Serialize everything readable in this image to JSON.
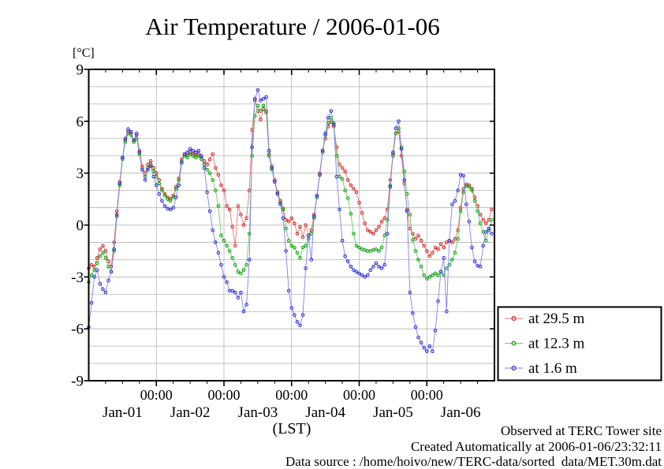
{
  "title": "Air Temperature / 2006-01-06",
  "y_axis": {
    "unit_label": "[°C]",
    "min": -9,
    "max": 9,
    "label_step": 3,
    "grid_step": 1,
    "tick_labels": [
      "9",
      "6",
      "3",
      "0",
      "-3",
      "-6",
      "-9"
    ]
  },
  "x_axis": {
    "label": "(LST)",
    "start_hour": 0,
    "end_hour": 144,
    "minor_tick_hours": 6,
    "major_tick_hours": 24,
    "midnight_label": "00:00",
    "day_labels": [
      "Jan-01",
      "Jan-02",
      "Jan-03",
      "Jan-04",
      "Jan-05",
      "Jan-06"
    ]
  },
  "footer": {
    "line1": "Observed at TERC Tower site",
    "line2": "Created Automatically at 2006-01-06/23:32:11",
    "line3": "Data source : /home/hoivo/new/TERC-data/sorted  data/MET.30m.dat"
  },
  "colors": {
    "background": "#ffffff",
    "frame": "#000000",
    "grid": "#b4b4b4"
  },
  "chart_data": {
    "type": "line",
    "title": "Air Temperature / 2006-01-06",
    "xlabel": "(LST)",
    "ylabel": "[°C]",
    "ylim": [
      -9,
      9
    ],
    "xlim_hours": [
      0,
      144
    ],
    "grid": "on",
    "legend_position": "outside-right-bottom",
    "x_unit": "hours since 2006-01-01 00:00 LST",
    "step_hours": 1,
    "series": [
      {
        "name": "at 29.5 m",
        "line_color": "#f07070",
        "marker_color": "#d62020",
        "values": [
          -2.5,
          -2.3,
          -2.4,
          -1.9,
          -1.4,
          -1.2,
          -1.5,
          -2.1,
          -2.4,
          -1.0,
          0.8,
          2.5,
          3.9,
          4.9,
          5.4,
          5.3,
          4.9,
          5.2,
          4.3,
          3.4,
          3.0,
          3.5,
          3.7,
          3.3,
          3.0,
          2.6,
          2.1,
          1.8,
          1.6,
          1.5,
          1.7,
          2.2,
          2.7,
          3.8,
          4.1,
          4.0,
          4.2,
          4.1,
          4.0,
          4.1,
          3.9,
          3.7,
          3.5,
          3.8,
          4.1,
          3.3,
          2.9,
          2.3,
          2.0,
          1.1,
          0.9,
          -0.1,
          -1.2,
          1.1,
          0.6,
          0.0,
          0.4,
          2.0,
          5.5,
          7.2,
          6.6,
          6.1,
          6.7,
          6.5,
          4.1,
          3.4,
          2.6,
          1.9,
          1.4,
          0.95,
          0.3,
          0.2,
          0.4,
          0.1,
          -0.5,
          -0.1,
          -0.7,
          0.0,
          -0.6,
          -0.3,
          0.6,
          1.7,
          3.0,
          4.3,
          5.0,
          5.7,
          5.95,
          5.7,
          4.5,
          3.5,
          3.3,
          3.1,
          2.6,
          2.3,
          2.1,
          1.9,
          1.3,
          0.7,
          0.1,
          -0.3,
          -0.4,
          -0.5,
          -0.3,
          -0.1,
          0.2,
          0.4,
          0.9,
          2.6,
          4.1,
          5.3,
          5.4,
          4.0,
          2.4,
          0.9,
          -0.2,
          -0.5,
          -0.8,
          -0.6,
          -0.9,
          -1.2,
          -1.5,
          -1.8,
          -1.6,
          -1.3,
          -1.4,
          -1.1,
          -1.3,
          -1.0,
          -0.9,
          -1.0,
          -0.8,
          -0.3,
          1.0,
          2.1,
          2.35,
          2.3,
          2.1,
          1.6,
          1.1,
          0.6,
          0.3,
          0.1,
          0.3,
          0.9
        ]
      },
      {
        "name": "at 12.3 m",
        "line_color": "#6cc86c",
        "marker_color": "#00a000",
        "values": [
          -3.3,
          -2.9,
          -2.6,
          -2.2,
          -1.8,
          -1.6,
          -1.9,
          -2.4,
          -2.7,
          -1.5,
          0.5,
          2.3,
          3.8,
          4.8,
          5.3,
          5.2,
          4.8,
          5.0,
          4.1,
          3.2,
          2.8,
          3.3,
          3.5,
          3.1,
          2.8,
          2.4,
          2.0,
          1.7,
          1.5,
          1.4,
          1.6,
          2.1,
          2.6,
          3.7,
          4.0,
          3.9,
          4.1,
          4.0,
          3.9,
          4.0,
          3.8,
          3.5,
          3.2,
          3.0,
          2.6,
          2.0,
          1.1,
          -0.6,
          -0.9,
          -1.2,
          -1.5,
          -1.9,
          -2.3,
          -2.7,
          -2.8,
          -2.6,
          -2.3,
          -0.5,
          4.0,
          6.3,
          6.9,
          6.6,
          6.9,
          6.6,
          4.0,
          3.2,
          2.5,
          1.8,
          1.3,
          0.9,
          -0.2,
          -0.9,
          -1.2,
          -1.3,
          -1.6,
          -1.9,
          -1.3,
          -1.2,
          -0.8,
          -0.5,
          0.4,
          1.6,
          2.9,
          4.2,
          5.2,
          5.9,
          6.2,
          5.9,
          4.0,
          2.8,
          2.65,
          2.0,
          1.55,
          0.65,
          -0.5,
          -1.2,
          -1.3,
          -1.4,
          -1.45,
          -1.5,
          -1.5,
          -1.45,
          -1.4,
          -1.5,
          -1.3,
          -0.6,
          0.3,
          2.3,
          4.0,
          5.3,
          5.6,
          4.5,
          3.1,
          1.8,
          0.6,
          -0.85,
          -1.5,
          -2.0,
          -2.4,
          -2.9,
          -3.1,
          -3.0,
          -2.9,
          -2.8,
          -2.9,
          -2.7,
          -2.9,
          -2.5,
          -2.3,
          -2.0,
          -1.6,
          -0.8,
          0.8,
          1.9,
          2.25,
          2.2,
          2.0,
          1.4,
          0.8,
          0.1,
          -0.4,
          -0.9,
          -0.3,
          0.3
        ]
      },
      {
        "name": "at 1.6 m",
        "line_color": "#8080f0",
        "marker_color": "#2828d8",
        "values": [
          -5.9,
          -4.5,
          -3.0,
          -2.6,
          -3.4,
          -3.7,
          -3.9,
          -3.2,
          -2.7,
          -1.4,
          0.6,
          2.4,
          3.9,
          5.0,
          5.55,
          5.4,
          4.9,
          5.3,
          4.2,
          3.2,
          2.6,
          3.2,
          3.4,
          2.8,
          2.3,
          1.8,
          1.4,
          1.1,
          0.95,
          0.9,
          1.0,
          1.6,
          2.3,
          3.6,
          4.1,
          4.2,
          4.4,
          4.3,
          4.2,
          4.3,
          4.0,
          3.3,
          1.9,
          0.8,
          -0.3,
          -1.0,
          -1.6,
          -2.3,
          -3.0,
          -3.3,
          -3.8,
          -3.8,
          -3.9,
          -4.2,
          -3.9,
          -5.0,
          -4.6,
          -2.0,
          4.5,
          7.3,
          7.8,
          7.2,
          7.3,
          7.4,
          4.3,
          3.3,
          2.5,
          1.8,
          1.2,
          0.4,
          -1.5,
          -3.8,
          -4.8,
          -5.2,
          -5.6,
          -5.8,
          -5.2,
          -2.5,
          -0.6,
          -2.0,
          0.5,
          1.7,
          2.9,
          4.3,
          5.3,
          6.2,
          6.6,
          5.8,
          2.8,
          0.9,
          -0.9,
          -1.8,
          -2.1,
          -2.4,
          -2.6,
          -2.7,
          -2.8,
          -2.9,
          -3.0,
          -2.9,
          -2.6,
          -2.4,
          -2.2,
          -2.4,
          -2.5,
          -2.3,
          -0.5,
          2.2,
          4.2,
          5.6,
          6.0,
          4.4,
          2.6,
          0.8,
          -3.9,
          -5.1,
          -5.9,
          -6.5,
          -6.8,
          -7.1,
          -7.3,
          -7.0,
          -7.3,
          -6.1,
          -4.4,
          -2.7,
          -1.9,
          -5.0,
          -0.9,
          1.2,
          1.4,
          2.0,
          2.9,
          2.85,
          1.2,
          0.2,
          -1.3,
          -2.1,
          -2.35,
          -2.4,
          -1.2,
          -0.4,
          -0.2,
          -0.5
        ]
      }
    ]
  }
}
